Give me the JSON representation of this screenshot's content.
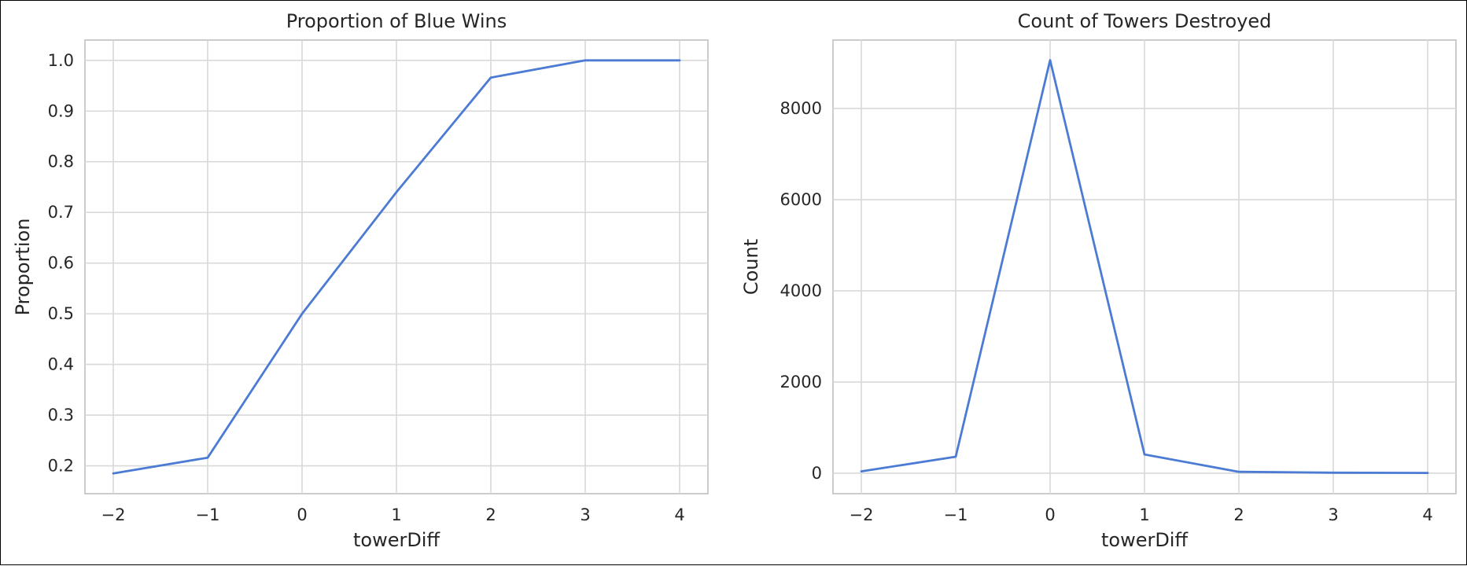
{
  "chart_data": [
    {
      "type": "line",
      "title": "Proportion of Blue Wins",
      "xlabel": "towerDiff",
      "ylabel": "Proportion",
      "x": [
        -2,
        -1,
        0,
        1,
        2,
        3,
        4
      ],
      "series": [
        {
          "values": [
            0.185,
            0.216,
            0.5,
            0.74,
            0.966,
            1.0,
            1.0
          ]
        }
      ],
      "xlim": [
        -2.3,
        4.3
      ],
      "ylim": [
        0.145,
        1.04
      ],
      "xticks": [
        "−2",
        "−1",
        "0",
        "1",
        "2",
        "3",
        "4"
      ],
      "xtick_values": [
        -2,
        -1,
        0,
        1,
        2,
        3,
        4
      ],
      "yticks": [
        "0.2",
        "0.3",
        "0.4",
        "0.5",
        "0.6",
        "0.7",
        "0.8",
        "0.9",
        "1.0"
      ],
      "ytick_values": [
        0.2,
        0.3,
        0.4,
        0.5,
        0.6,
        0.7,
        0.8,
        0.9,
        1.0
      ],
      "grid": true,
      "color": "#4c7bd4"
    },
    {
      "type": "line",
      "title": "Count of Towers Destroyed",
      "xlabel": "towerDiff",
      "ylabel": "Count",
      "x": [
        -2,
        -1,
        0,
        1,
        2,
        3,
        4
      ],
      "series": [
        {
          "values": [
            40,
            360,
            9060,
            410,
            30,
            10,
            5
          ]
        }
      ],
      "xlim": [
        -2.3,
        4.3
      ],
      "ylim": [
        -450,
        9500
      ],
      "xticks": [
        "−2",
        "−1",
        "0",
        "1",
        "2",
        "3",
        "4"
      ],
      "xtick_values": [
        -2,
        -1,
        0,
        1,
        2,
        3,
        4
      ],
      "yticks": [
        "0",
        "2000",
        "4000",
        "6000",
        "8000"
      ],
      "ytick_values": [
        0,
        2000,
        4000,
        6000,
        8000
      ],
      "grid": true,
      "color": "#4c7bd4"
    }
  ]
}
